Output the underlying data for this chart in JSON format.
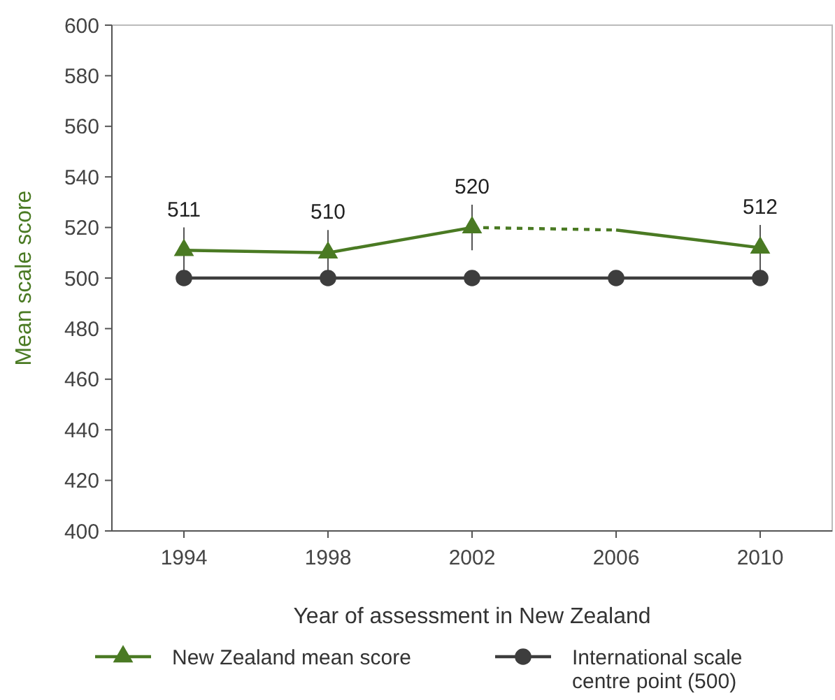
{
  "chart_data": {
    "type": "line",
    "xlabel": "Year of assessment in New Zealand",
    "ylabel": "Mean scale score",
    "categories": [
      "1994",
      "1998",
      "2002",
      "2006",
      "2010"
    ],
    "ylim": [
      400,
      600
    ],
    "yticks": [
      400,
      420,
      440,
      460,
      480,
      500,
      520,
      540,
      560,
      580,
      600
    ],
    "grid": false,
    "legend": "bottom",
    "series": [
      {
        "name": "New Zealand mean score",
        "color": "#4a7a23",
        "values": [
          511,
          510,
          520,
          null,
          512
        ],
        "marker": "triangle",
        "line_style": "solid",
        "errors": [
          9,
          9,
          9,
          null,
          9
        ],
        "value_labels": [
          "511",
          "510",
          "520",
          null,
          "512"
        ]
      },
      {
        "color": "#4a7a23",
        "values": [
          null,
          null,
          520,
          519,
          null
        ],
        "marker": "none",
        "line_style": "dashed"
      },
      {
        "color": "#4a7a23",
        "values": [
          null,
          null,
          null,
          519,
          512
        ],
        "marker": "none",
        "line_style": "solid"
      },
      {
        "name": "International scale centre point (500)",
        "color": "#3d3d3d",
        "values": [
          500,
          500,
          500,
          500,
          500
        ],
        "marker": "circle",
        "line_style": "solid"
      }
    ]
  }
}
